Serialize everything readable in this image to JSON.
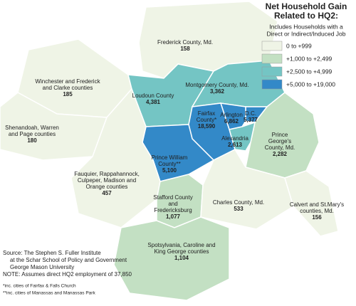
{
  "map": {
    "title": [
      "Net Household Gain",
      "Related to HQ2:"
    ],
    "subtitle": [
      "Includes Households with a",
      "Direct or Indirect/Induced Job"
    ],
    "legend": [
      {
        "label": "0  to +999",
        "min": 0,
        "max": 999,
        "color": "#eff4e6"
      },
      {
        "label": "+1,000 to +2,499",
        "min": 1000,
        "max": 2499,
        "color": "#c3e0c3"
      },
      {
        "label": "+2,500 to +4,999",
        "min": 2500,
        "max": 4999,
        "color": "#74c5c4"
      },
      {
        "label": "+5,000 to +19,000",
        "min": 5000,
        "max": 19000,
        "color": "#3389c8"
      }
    ],
    "regions": [
      {
        "name": [
          "Frederick County, Md."
        ],
        "value": 158,
        "label": "158"
      },
      {
        "name": [
          "Winchester and Frederick",
          "and Clarke counties"
        ],
        "value": 185,
        "label": "185"
      },
      {
        "name": [
          "Shenandoah, Warren",
          "and Page counties"
        ],
        "value": 180,
        "label": "180"
      },
      {
        "name": [
          "Loudoun County"
        ],
        "value": 4381,
        "label": "4,381"
      },
      {
        "name": [
          "Montgomery County, Md."
        ],
        "value": 3362,
        "label": "3,362"
      },
      {
        "name": [
          "Prince",
          "George's",
          "County, Md."
        ],
        "value": 2282,
        "label": "2,282"
      },
      {
        "name": [
          "D.C."
        ],
        "value": 5377,
        "label": "5,377"
      },
      {
        "name": [
          "Arlington"
        ],
        "value": 6862,
        "label": "6,862"
      },
      {
        "name": [
          "Alexandria"
        ],
        "value": 2613,
        "label": "2,613"
      },
      {
        "name": [
          "Fairfax",
          "County*"
        ],
        "value": 18590,
        "label": "18,590"
      },
      {
        "name": [
          "Prince William",
          "County**"
        ],
        "value": 5100,
        "label": "5,100"
      },
      {
        "name": [
          "Fauquier, Rappahannock,",
          "Culpeper, Madison and",
          "Orange counties"
        ],
        "value": 457,
        "label": "457"
      },
      {
        "name": [
          "Stafford County",
          "and",
          "Fredericksburg"
        ],
        "value": 1077,
        "label": "1,077"
      },
      {
        "name": [
          "Charles County, Md."
        ],
        "value": 533,
        "label": "533"
      },
      {
        "name": [
          "Calvert and St.Mary's",
          "counties, Md."
        ],
        "value": 156,
        "label": "156"
      },
      {
        "name": [
          "Spotsylvania, Caroline and",
          "King George counties"
        ],
        "value": 1104,
        "label": "1,104"
      }
    ],
    "source": [
      "Source: The Stephen S. Fuller Institute",
      "at the Schar School of Policy and Government",
      "George Mason University",
      "NOTE: Assumes direct HQ2 employment of 37,850"
    ],
    "footnotes": [
      "*inc. cities of Fairfax & Falls Church",
      "**inc. cities of Manassas and Manassas Park"
    ]
  }
}
